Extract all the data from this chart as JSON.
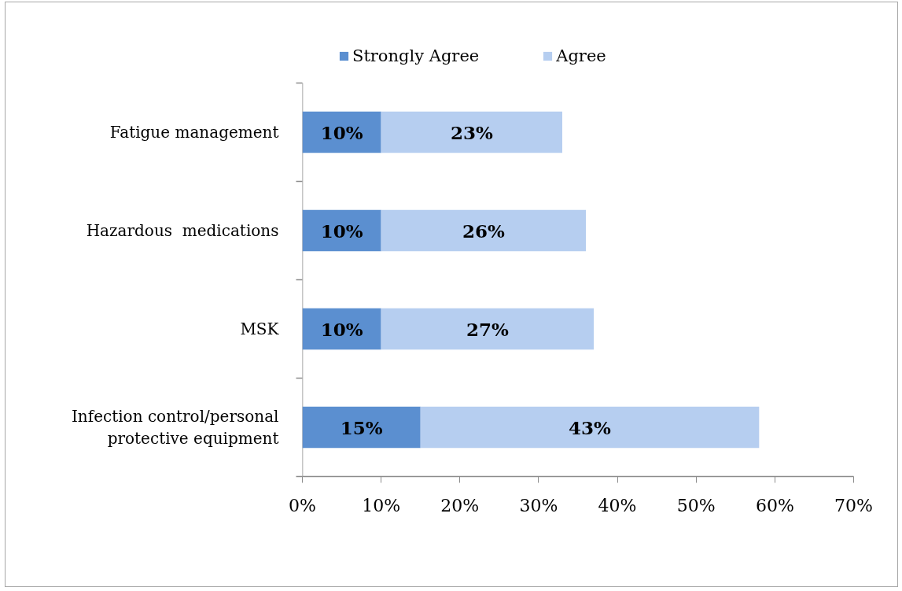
{
  "chart_data": {
    "type": "bar",
    "orientation": "horizontal",
    "stacked": true,
    "categories": [
      "Fatigue management",
      "Hazardous  medications",
      "MSK",
      "Infection control/personal protective equipment"
    ],
    "series": [
      {
        "name": "Strongly Agree",
        "color": "#5b8fd0",
        "values": [
          10,
          10,
          10,
          15
        ],
        "value_labels": [
          "10%",
          "10%",
          "10%",
          "15%"
        ]
      },
      {
        "name": "Agree",
        "color": "#b6cef0",
        "values": [
          23,
          26,
          27,
          43
        ],
        "value_labels": [
          "23%",
          "26%",
          "27%",
          "43%"
        ]
      }
    ],
    "xlim": [
      0,
      70
    ],
    "xticks": [
      {
        "value": 0,
        "label": "0%"
      },
      {
        "value": 10,
        "label": "10%"
      },
      {
        "value": 20,
        "label": "20%"
      },
      {
        "value": 30,
        "label": "30%"
      },
      {
        "value": 40,
        "label": "40%"
      },
      {
        "value": 50,
        "label": "50%"
      },
      {
        "value": 60,
        "label": "60%"
      },
      {
        "value": 70,
        "label": "70%"
      }
    ],
    "grid": false,
    "legend": "top"
  }
}
